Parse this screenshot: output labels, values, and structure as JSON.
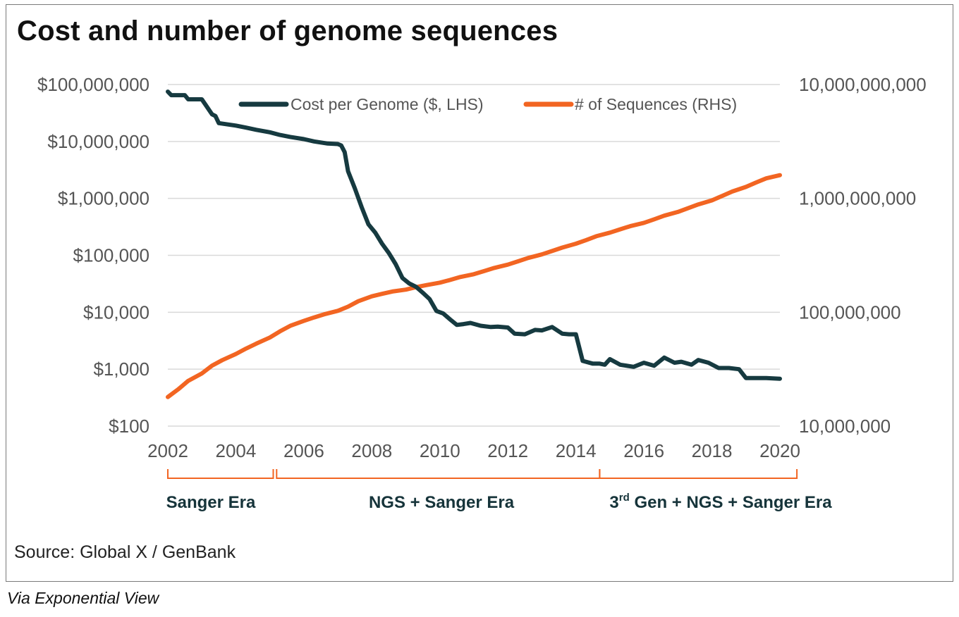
{
  "title": "Cost and number of genome sequences",
  "source": "Source: Global X / GenBank",
  "via": "Via Exponential View",
  "colors": {
    "cost": "#163a40",
    "sequences": "#f26522",
    "grid": "#d9d9d9",
    "era_bracket": "#f26522",
    "era_text": "#16343a"
  },
  "eras": [
    {
      "label": "Sanger Era",
      "from": 2002,
      "to": 2005.1
    },
    {
      "label_pre": "3",
      "label_sup": "rd",
      "label_post": " Gen + NGS + Sanger Era",
      "from": 2014.7,
      "to": 2020.5
    },
    {
      "label": "NGS + Sanger Era",
      "from": 2005.2,
      "to": 2014.7
    }
  ],
  "chart_data": {
    "type": "line",
    "title": "Cost and number of genome sequences",
    "grid": true,
    "legend_position": "top-center",
    "x_ticks": [
      "2002",
      "2004",
      "2006",
      "2008",
      "2010",
      "2012",
      "2014",
      "2016",
      "2018",
      "2020"
    ],
    "xlim": [
      2002,
      2020
    ],
    "y_left": {
      "scale": "log",
      "lim": [
        100,
        100000000
      ],
      "ticks": [
        100,
        1000,
        10000,
        100000,
        1000000,
        10000000,
        100000000
      ],
      "tick_labels": [
        "$100",
        "$1,000",
        "$10,000",
        "$100,000",
        "$1,000,000",
        "$10,000,000",
        "$100,000,000"
      ]
    },
    "y_right": {
      "scale": "log",
      "lim": [
        10000000,
        10000000000
      ],
      "ticks": [
        10000000,
        100000000,
        1000000000,
        10000000000
      ],
      "tick_labels": [
        "10,000,000",
        "100,000,000",
        "1,000,000,000",
        "10,000,000,000"
      ]
    },
    "series": [
      {
        "name": "Cost per Genome ($, LHS)",
        "axis": "left",
        "x": [
          2002.0,
          2002.1,
          2002.5,
          2002.6,
          2003.0,
          2003.1,
          2003.3,
          2003.4,
          2003.5,
          2004.0,
          2004.3,
          2004.6,
          2005.0,
          2005.3,
          2005.6,
          2006.0,
          2006.3,
          2006.7,
          2007.0,
          2007.1,
          2007.2,
          2007.3,
          2007.5,
          2007.7,
          2007.9,
          2008.1,
          2008.3,
          2008.5,
          2008.7,
          2008.9,
          2009.1,
          2009.3,
          2009.5,
          2009.7,
          2009.9,
          2010.1,
          2010.3,
          2010.5,
          2010.7,
          2010.9,
          2011.2,
          2011.5,
          2011.7,
          2012.0,
          2012.2,
          2012.5,
          2012.8,
          2013.0,
          2013.3,
          2013.6,
          2013.8,
          2014.0,
          2014.2,
          2014.5,
          2014.7,
          2014.85,
          2015.0,
          2015.3,
          2015.7,
          2016.0,
          2016.3,
          2016.6,
          2016.9,
          2017.1,
          2017.4,
          2017.6,
          2017.9,
          2018.2,
          2018.5,
          2018.8,
          2019.0,
          2019.3,
          2019.6,
          2020.0
        ],
        "values": [
          75000000,
          65000000,
          65000000,
          55000000,
          55000000,
          45000000,
          30000000,
          28000000,
          21000000,
          19000000,
          17500000,
          16000000,
          14500000,
          13000000,
          12000000,
          11000000,
          10000000,
          9200000,
          9000000,
          8500000,
          6500000,
          3000000,
          1500000,
          700000,
          350000,
          250000,
          160000,
          110000,
          70000,
          40000,
          32000,
          28000,
          22000,
          17000,
          10500,
          9500,
          7500,
          6000,
          6200,
          6500,
          5800,
          5500,
          5600,
          5400,
          4200,
          4100,
          4900,
          4800,
          5500,
          4200,
          4100,
          4100,
          1400,
          1250,
          1250,
          1200,
          1500,
          1200,
          1100,
          1300,
          1150,
          1600,
          1300,
          1350,
          1200,
          1450,
          1300,
          1050,
          1050,
          1000,
          700,
          700,
          700,
          680
        ]
      },
      {
        "name": "# of Sequences (RHS)",
        "axis": "right",
        "x": [
          2002.0,
          2002.3,
          2002.6,
          2003.0,
          2003.3,
          2003.6,
          2004.0,
          2004.3,
          2004.6,
          2005.0,
          2005.3,
          2005.6,
          2006.0,
          2006.3,
          2006.6,
          2007.0,
          2007.3,
          2007.6,
          2008.0,
          2008.3,
          2008.6,
          2009.0,
          2009.3,
          2009.6,
          2010.0,
          2010.3,
          2010.6,
          2011.0,
          2011.3,
          2011.6,
          2012.0,
          2012.3,
          2012.6,
          2013.0,
          2013.3,
          2013.6,
          2014.0,
          2014.3,
          2014.6,
          2015.0,
          2015.3,
          2015.6,
          2016.0,
          2016.3,
          2016.6,
          2017.0,
          2017.3,
          2017.6,
          2018.0,
          2018.3,
          2018.6,
          2019.0,
          2019.3,
          2019.6,
          2020.0
        ],
        "values": [
          18000000,
          21000000,
          25000000,
          29000000,
          34000000,
          38000000,
          43000000,
          48000000,
          53000000,
          60000000,
          68000000,
          76000000,
          84000000,
          90000000,
          96000000,
          103000000,
          112000000,
          125000000,
          138000000,
          145000000,
          152000000,
          158000000,
          166000000,
          173000000,
          182000000,
          192000000,
          204000000,
          216000000,
          230000000,
          245000000,
          262000000,
          280000000,
          300000000,
          322000000,
          345000000,
          370000000,
          400000000,
          430000000,
          465000000,
          500000000,
          535000000,
          570000000,
          610000000,
          655000000,
          705000000,
          760000000,
          820000000,
          885000000,
          960000000,
          1050000000,
          1150000000,
          1260000000,
          1380000000,
          1500000000,
          1600000000
        ]
      }
    ]
  }
}
